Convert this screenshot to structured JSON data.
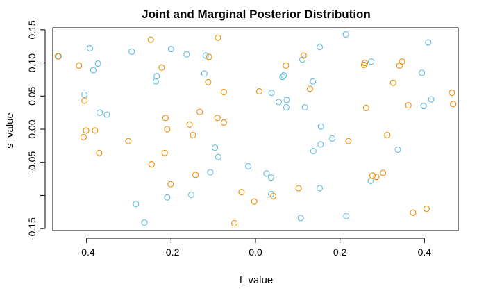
{
  "chart_data": {
    "type": "scatter",
    "title": "Joint and Marginal Posterior Distribution",
    "xlabel": "f_value",
    "ylabel": "s_value",
    "xlim": [
      -0.48,
      0.48
    ],
    "ylim": [
      -0.153,
      0.153
    ],
    "xticks": [
      -0.4,
      -0.2,
      0.0,
      0.2,
      0.4
    ],
    "xtick_labels": [
      "-0.4",
      "-0.2",
      "0.0",
      "0.2",
      "0.4"
    ],
    "yticks": [
      -0.15,
      -0.1,
      -0.05,
      0.0,
      0.05,
      0.1,
      0.15
    ],
    "ytick_labels": [
      "-0.15",
      "",
      "-0.05",
      "0.00",
      "0.05",
      "0.10",
      "0.15"
    ],
    "grid": false,
    "marker": "open-circle",
    "series": [
      {
        "color": "#5fbce0",
        "points": [
          [
            -0.466,
            0.11
          ],
          [
            -0.392,
            0.122
          ],
          [
            -0.384,
            0.089
          ],
          [
            -0.373,
            0.099
          ],
          [
            -0.405,
            0.052
          ],
          [
            -0.369,
            0.025
          ],
          [
            -0.352,
            0.022
          ],
          [
            -0.293,
            0.117
          ],
          [
            -0.234,
            0.08
          ],
          [
            -0.236,
            0.072
          ],
          [
            -0.2,
            0.121
          ],
          [
            -0.163,
            0.113
          ],
          [
            -0.118,
            0.111
          ],
          [
            -0.121,
            0.084
          ],
          [
            -0.096,
            -0.028
          ],
          [
            -0.088,
            -0.042
          ],
          [
            -0.107,
            -0.065
          ],
          [
            -0.283,
            -0.113
          ],
          [
            -0.263,
            -0.141
          ],
          [
            -0.209,
            -0.103
          ],
          [
            -0.152,
            -0.099
          ],
          [
            -0.017,
            -0.056
          ],
          [
            0.026,
            -0.067
          ],
          [
            0.037,
            -0.073
          ],
          [
            0.037,
            -0.098
          ],
          [
            0.038,
            0.055
          ],
          [
            0.055,
            0.041
          ],
          [
            0.064,
            0.079
          ],
          [
            0.067,
            0.081
          ],
          [
            0.073,
            0.033
          ],
          [
            0.074,
            0.044
          ],
          [
            0.107,
            -0.134
          ],
          [
            0.111,
            0.105
          ],
          [
            0.117,
            0.033
          ],
          [
            0.136,
            0.072
          ],
          [
            0.137,
            -0.033
          ],
          [
            0.152,
            0.124
          ],
          [
            0.154,
            -0.023
          ],
          [
            0.155,
            0.004
          ],
          [
            0.152,
            -0.089
          ],
          [
            0.182,
            -0.014
          ],
          [
            0.214,
            0.143
          ],
          [
            0.215,
            -0.131
          ],
          [
            0.274,
            0.102
          ],
          [
            0.273,
            -0.078
          ],
          [
            0.337,
            -0.031
          ],
          [
            0.394,
            0.085
          ],
          [
            0.398,
            0.035
          ],
          [
            0.409,
            0.131
          ],
          [
            0.416,
            0.045
          ]
        ]
      },
      {
        "color": "#f08c00",
        "points": [
          [
            -0.468,
            0.11
          ],
          [
            -0.418,
            0.096
          ],
          [
            -0.405,
            0.043
          ],
          [
            -0.407,
            -0.012
          ],
          [
            -0.401,
            -0.002
          ],
          [
            -0.38,
            -0.002
          ],
          [
            -0.37,
            -0.036
          ],
          [
            -0.301,
            -0.018
          ],
          [
            -0.248,
            0.135
          ],
          [
            -0.222,
            0.093
          ],
          [
            -0.246,
            -0.053
          ],
          [
            -0.215,
            -0.036
          ],
          [
            -0.213,
            0.017
          ],
          [
            -0.209,
            0.0
          ],
          [
            -0.201,
            -0.083
          ],
          [
            -0.156,
            0.007
          ],
          [
            -0.148,
            -0.009
          ],
          [
            -0.142,
            -0.069
          ],
          [
            -0.132,
            0.026
          ],
          [
            -0.112,
            0.071
          ],
          [
            -0.11,
            0.109
          ],
          [
            -0.089,
            0.138
          ],
          [
            -0.09,
            0.017
          ],
          [
            -0.075,
            0.01
          ],
          [
            -0.075,
            0.056
          ],
          [
            -0.05,
            -0.142
          ],
          [
            -0.033,
            -0.095
          ],
          [
            -0.003,
            -0.109
          ],
          [
            0.009,
            0.057
          ],
          [
            0.042,
            -0.101
          ],
          [
            0.072,
            0.096
          ],
          [
            0.102,
            -0.089
          ],
          [
            0.114,
            0.111
          ],
          [
            0.129,
            0.061
          ],
          [
            0.22,
            -0.018
          ],
          [
            0.257,
            0.097
          ],
          [
            0.259,
            0.1
          ],
          [
            0.262,
            0.032
          ],
          [
            0.277,
            -0.07
          ],
          [
            0.286,
            -0.072
          ],
          [
            0.302,
            -0.066
          ],
          [
            0.312,
            -0.009
          ],
          [
            0.326,
            0.07
          ],
          [
            0.341,
            0.096
          ],
          [
            0.347,
            0.102
          ],
          [
            0.362,
            0.036
          ],
          [
            0.373,
            -0.126
          ],
          [
            0.405,
            -0.12
          ],
          [
            0.465,
            0.055
          ],
          [
            0.468,
            0.038
          ]
        ]
      }
    ]
  }
}
